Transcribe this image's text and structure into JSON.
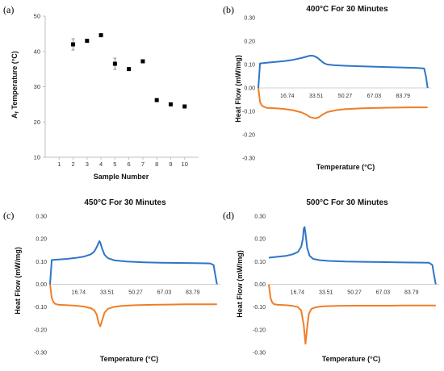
{
  "panels": {
    "a": {
      "label": "(a)"
    },
    "b": {
      "label": "(b)"
    },
    "c": {
      "label": "(c)"
    },
    "d": {
      "label": "(d)"
    }
  },
  "chart_data": [
    {
      "type": "scatter",
      "panel": "(a)",
      "xlabel": "Sample Number",
      "ylabel": "Af Temperature (°C)",
      "ylabel_main": "A",
      "ylabel_sub": "f",
      "ylabel_rest": " Temperature (°C)",
      "xlim": [
        0,
        11
      ],
      "ylim": [
        10,
        50
      ],
      "x_ticks": [
        1,
        2,
        3,
        4,
        5,
        6,
        7,
        8,
        9,
        10
      ],
      "y_ticks": [
        10,
        20,
        30,
        40,
        50
      ],
      "grid": false,
      "marker_color": "#000000",
      "points": [
        {
          "x": 2,
          "y": 42.0,
          "err": 1.6
        },
        {
          "x": 3,
          "y": 43.0,
          "err": 0
        },
        {
          "x": 4,
          "y": 44.6,
          "err": 0
        },
        {
          "x": 5,
          "y": 36.5,
          "err": 1.6
        },
        {
          "x": 6,
          "y": 35.0,
          "err": 0
        },
        {
          "x": 7,
          "y": 37.2,
          "err": 0
        },
        {
          "x": 8,
          "y": 26.2,
          "err": 0
        },
        {
          "x": 9,
          "y": 25.0,
          "err": 0
        },
        {
          "x": 10,
          "y": 24.4,
          "err": 0
        }
      ]
    },
    {
      "type": "line",
      "panel": "(b)",
      "title": "400°C For 30 Minutes",
      "xlabel": "Temperature (°C)",
      "ylabel": "Heat Flow (mW/mg)",
      "xlim": [
        0,
        100
      ],
      "ylim": [
        -0.3,
        0.3
      ],
      "y_ticks": [
        "0.30",
        "0.20",
        "0.10",
        "0.00",
        "-0.10",
        "-0.20",
        "-0.30"
      ],
      "x_ticks": [
        "16.74",
        "33.51",
        "50.27",
        "67.03",
        "83.79"
      ],
      "x_tick_values": [
        16.74,
        33.51,
        50.27,
        67.03,
        83.79
      ],
      "grid": false,
      "series": [
        {
          "color": "#2f75c8",
          "x": [
            0,
            1,
            5,
            10,
            15,
            20,
            25,
            28,
            30,
            32,
            34,
            36,
            38,
            40,
            44,
            50,
            60,
            70,
            80,
            92,
            96,
            97,
            98
          ],
          "y": [
            0.0,
            0.105,
            0.108,
            0.111,
            0.115,
            0.12,
            0.128,
            0.134,
            0.138,
            0.137,
            0.13,
            0.118,
            0.106,
            0.1,
            0.097,
            0.095,
            0.092,
            0.09,
            0.088,
            0.085,
            0.083,
            0.05,
            0.0
          ]
        },
        {
          "color": "#f07d27",
          "x": [
            0,
            1,
            2,
            3,
            5,
            10,
            15,
            20,
            25,
            28,
            30,
            33,
            35,
            37,
            40,
            45,
            50,
            60,
            70,
            80,
            90,
            98
          ],
          "y": [
            0.0,
            -0.06,
            -0.075,
            -0.08,
            -0.085,
            -0.087,
            -0.09,
            -0.095,
            -0.105,
            -0.115,
            -0.125,
            -0.13,
            -0.126,
            -0.115,
            -0.103,
            -0.095,
            -0.091,
            -0.087,
            -0.085,
            -0.084,
            -0.083,
            -0.083
          ]
        }
      ]
    },
    {
      "type": "line",
      "panel": "(c)",
      "title": "450°C For 30 Minutes",
      "xlabel": "Temperature (°C)",
      "ylabel": "Heat Flow (mW/mg)",
      "xlim": [
        0,
        100
      ],
      "ylim": [
        -0.3,
        0.3
      ],
      "y_ticks": [
        "0.30",
        "0.20",
        "0.10",
        "0.00",
        "-0.10",
        "-0.20",
        "-0.30"
      ],
      "x_ticks": [
        "16.74",
        "33.51",
        "50.27",
        "67.03",
        "83.79"
      ],
      "x_tick_values": [
        16.74,
        33.51,
        50.27,
        67.03,
        83.79
      ],
      "grid": false,
      "series": [
        {
          "color": "#2f75c8",
          "x": [
            0,
            1,
            5,
            10,
            15,
            20,
            24,
            26,
            27.5,
            28.5,
            29,
            29.5,
            30.5,
            32,
            34,
            38,
            45,
            55,
            65,
            75,
            85,
            94,
            96,
            97,
            98
          ],
          "y": [
            0.0,
            0.107,
            0.109,
            0.112,
            0.116,
            0.122,
            0.132,
            0.145,
            0.165,
            0.182,
            0.19,
            0.184,
            0.158,
            0.13,
            0.115,
            0.105,
            0.1,
            0.097,
            0.095,
            0.094,
            0.093,
            0.092,
            0.085,
            0.04,
            0.0
          ]
        },
        {
          "color": "#f07d27",
          "x": [
            0,
            1,
            2,
            3,
            5,
            10,
            15,
            20,
            24,
            26,
            27.5,
            28.5,
            29.5,
            30.5,
            32,
            34,
            37,
            42,
            50,
            60,
            70,
            80,
            90,
            98
          ],
          "y": [
            0.0,
            -0.06,
            -0.078,
            -0.086,
            -0.09,
            -0.092,
            -0.094,
            -0.098,
            -0.105,
            -0.115,
            -0.135,
            -0.17,
            -0.185,
            -0.16,
            -0.125,
            -0.108,
            -0.1,
            -0.095,
            -0.092,
            -0.09,
            -0.089,
            -0.088,
            -0.088,
            -0.088
          ]
        }
      ]
    },
    {
      "type": "line",
      "panel": "(d)",
      "title": "500°C For 30 Minutes",
      "xlabel": "Temperature (°C)",
      "ylabel": "Heat Flow (mW/mg)",
      "xlim": [
        0,
        100
      ],
      "ylim": [
        -0.3,
        0.3
      ],
      "y_ticks": [
        "0.30",
        "0.20",
        "0.10",
        "0.00",
        "-0.10",
        "-0.20",
        "-0.30"
      ],
      "x_ticks": [
        "16.74",
        "33.51",
        "50.27",
        "67.03",
        "83.79"
      ],
      "x_tick_values": [
        16.74,
        33.51,
        50.27,
        67.03,
        83.79
      ],
      "grid": false,
      "series": [
        {
          "color": "#2f75c8",
          "x": [
            0,
            5,
            10,
            14,
            17,
            19,
            20,
            20.5,
            21,
            21.5,
            22.5,
            24,
            26,
            30,
            35,
            45,
            55,
            65,
            75,
            85,
            94,
            96,
            97,
            98
          ],
          "y": [
            0.117,
            0.121,
            0.125,
            0.132,
            0.142,
            0.165,
            0.2,
            0.245,
            0.252,
            0.225,
            0.16,
            0.125,
            0.112,
            0.106,
            0.103,
            0.1,
            0.099,
            0.098,
            0.097,
            0.096,
            0.095,
            0.085,
            0.04,
            0.0
          ]
        },
        {
          "color": "#f07d27",
          "x": [
            0,
            1,
            2,
            3,
            5,
            10,
            14,
            17,
            19,
            20.5,
            21.5,
            22.5,
            23.5,
            25,
            28,
            32,
            40,
            50,
            60,
            70,
            80,
            90,
            98
          ],
          "y": [
            0.0,
            -0.06,
            -0.08,
            -0.087,
            -0.09,
            -0.092,
            -0.095,
            -0.1,
            -0.115,
            -0.18,
            -0.262,
            -0.19,
            -0.13,
            -0.108,
            -0.1,
            -0.097,
            -0.095,
            -0.094,
            -0.094,
            -0.094,
            -0.093,
            -0.093,
            -0.093
          ]
        }
      ]
    }
  ]
}
